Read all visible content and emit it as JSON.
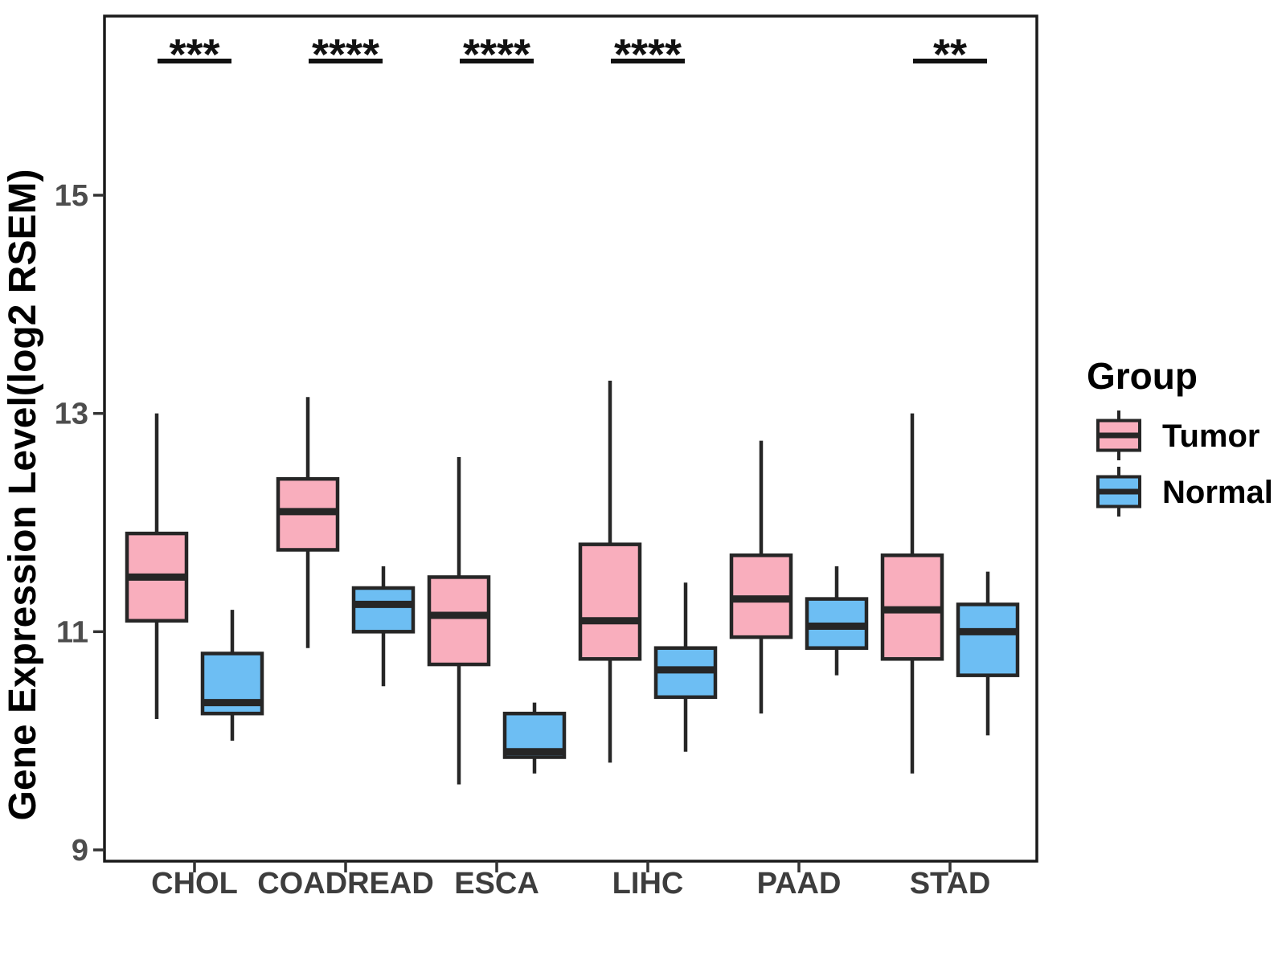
{
  "chart_data": {
    "type": "boxplot",
    "title": "",
    "xlabel": "",
    "ylabel": "Gene Expression Level(log2 RSEM)",
    "y_ticks": [
      15,
      13,
      11,
      9
    ],
    "ylim": [
      8.9,
      16.65
    ],
    "grid": false,
    "categories": [
      "CHOL",
      "COADREAD",
      "ESCA",
      "LIHC",
      "PAAD",
      "STAD"
    ],
    "series": [
      {
        "name": "Tumor",
        "color": "#F9AEBD",
        "boxes": [
          {
            "category": "CHOL",
            "whisker_low": 10.2,
            "q1": 11.1,
            "median": 11.5,
            "q3": 11.9,
            "whisker_high": 13.0
          },
          {
            "category": "COADREAD",
            "whisker_low": 10.85,
            "q1": 11.75,
            "median": 12.1,
            "q3": 12.4,
            "whisker_high": 13.15
          },
          {
            "category": "ESCA",
            "whisker_low": 9.6,
            "q1": 10.7,
            "median": 11.15,
            "q3": 11.5,
            "whisker_high": 12.6
          },
          {
            "category": "LIHC",
            "whisker_low": 9.8,
            "q1": 10.75,
            "median": 11.1,
            "q3": 11.8,
            "whisker_high": 13.3
          },
          {
            "category": "PAAD",
            "whisker_low": 10.25,
            "q1": 10.95,
            "median": 11.3,
            "q3": 11.7,
            "whisker_high": 12.75
          },
          {
            "category": "STAD",
            "whisker_low": 9.7,
            "q1": 10.75,
            "median": 11.2,
            "q3": 11.7,
            "whisker_high": 13.0
          }
        ]
      },
      {
        "name": "Normal",
        "color": "#6DBEF3",
        "boxes": [
          {
            "category": "CHOL",
            "whisker_low": 10.0,
            "q1": 10.25,
            "median": 10.35,
            "q3": 10.8,
            "whisker_high": 11.2
          },
          {
            "category": "COADREAD",
            "whisker_low": 10.5,
            "q1": 11.0,
            "median": 11.25,
            "q3": 11.4,
            "whisker_high": 11.6
          },
          {
            "category": "ESCA",
            "whisker_low": 9.7,
            "q1": 9.85,
            "median": 9.9,
            "q3": 10.25,
            "whisker_high": 10.35
          },
          {
            "category": "LIHC",
            "whisker_low": 9.9,
            "q1": 10.4,
            "median": 10.65,
            "q3": 10.85,
            "whisker_high": 11.45
          },
          {
            "category": "PAAD",
            "whisker_low": 10.6,
            "q1": 10.85,
            "median": 11.05,
            "q3": 11.3,
            "whisker_high": 11.6
          },
          {
            "category": "STAD",
            "whisker_low": 10.05,
            "q1": 10.6,
            "median": 11.0,
            "q3": 11.25,
            "whisker_high": 11.55
          }
        ]
      }
    ],
    "significance": [
      {
        "category": "CHOL",
        "label": "***"
      },
      {
        "category": "COADREAD",
        "label": "****"
      },
      {
        "category": "ESCA",
        "label": "****"
      },
      {
        "category": "LIHC",
        "label": "****"
      },
      {
        "category": "PAAD",
        "label": ""
      },
      {
        "category": "STAD",
        "label": "**"
      }
    ],
    "legend": {
      "title": "Group",
      "position": "right",
      "entries": [
        "Tumor",
        "Normal"
      ]
    }
  },
  "colors": {
    "tumor_fill": "#F9AEBD",
    "normal_fill": "#6DBEF3",
    "box_line": "#262626",
    "panel_border": "#1A1A1A",
    "tick_mark": "#333333",
    "ytick_text": "#4D4D4D",
    "xtick_text": "#3D3D3D",
    "sig_mark": "#111111"
  }
}
